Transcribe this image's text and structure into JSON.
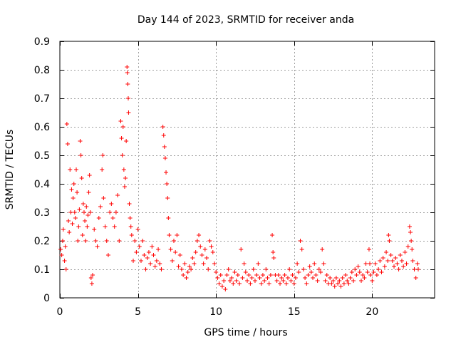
{
  "chart_data": {
    "type": "scatter",
    "title": "Day 144 of 2023, SRMTID for receiver anda",
    "xlabel": "GPS time / hours",
    "ylabel": "SRMTID / TECUs",
    "xlim": [
      0,
      24
    ],
    "ylim": [
      0,
      0.9
    ],
    "xticks": [
      0,
      5,
      10,
      15,
      20
    ],
    "yticks": [
      0,
      0.1,
      0.2,
      0.3,
      0.4,
      0.5,
      0.6,
      0.7,
      0.8,
      0.9
    ],
    "grid": true,
    "marker": "+",
    "color": "#ff0000",
    "series": [
      {
        "name": "SRMTID",
        "points": [
          [
            0.05,
            0.17
          ],
          [
            0.12,
            0.15
          ],
          [
            0.18,
            0.2
          ],
          [
            0.22,
            0.24
          ],
          [
            0.3,
            0.13
          ],
          [
            0.35,
            0.18
          ],
          [
            0.4,
            0.1
          ],
          [
            0.45,
            0.61
          ],
          [
            0.5,
            0.54
          ],
          [
            0.55,
            0.27
          ],
          [
            0.6,
            0.23
          ],
          [
            0.65,
            0.45
          ],
          [
            0.7,
            0.3
          ],
          [
            0.75,
            0.38
          ],
          [
            0.8,
            0.26
          ],
          [
            0.85,
            0.35
          ],
          [
            0.9,
            0.4
          ],
          [
            0.95,
            0.3
          ],
          [
            1.0,
            0.28
          ],
          [
            1.05,
            0.45
          ],
          [
            1.1,
            0.37
          ],
          [
            1.15,
            0.2
          ],
          [
            1.2,
            0.25
          ],
          [
            1.25,
            0.31
          ],
          [
            1.3,
            0.55
          ],
          [
            1.35,
            0.5
          ],
          [
            1.4,
            0.42
          ],
          [
            1.45,
            0.22
          ],
          [
            1.5,
            0.33
          ],
          [
            1.55,
            0.3
          ],
          [
            1.6,
            0.27
          ],
          [
            1.65,
            0.2
          ],
          [
            1.7,
            0.32
          ],
          [
            1.75,
            0.25
          ],
          [
            1.8,
            0.29
          ],
          [
            1.85,
            0.37
          ],
          [
            1.9,
            0.43
          ],
          [
            1.95,
            0.3
          ],
          [
            2.0,
            0.07
          ],
          [
            2.05,
            0.05
          ],
          [
            2.1,
            0.08
          ],
          [
            2.2,
            0.24
          ],
          [
            2.3,
            0.2
          ],
          [
            2.4,
            0.18
          ],
          [
            2.5,
            0.28
          ],
          [
            2.6,
            0.32
          ],
          [
            2.7,
            0.45
          ],
          [
            2.75,
            0.5
          ],
          [
            2.8,
            0.35
          ],
          [
            2.9,
            0.25
          ],
          [
            3.0,
            0.2
          ],
          [
            3.1,
            0.15
          ],
          [
            3.2,
            0.3
          ],
          [
            3.3,
            0.33
          ],
          [
            3.4,
            0.28
          ],
          [
            3.5,
            0.25
          ],
          [
            3.6,
            0.3
          ],
          [
            3.7,
            0.36
          ],
          [
            3.8,
            0.2
          ],
          [
            3.9,
            0.62
          ],
          [
            3.95,
            0.56
          ],
          [
            4.0,
            0.5
          ],
          [
            4.05,
            0.6
          ],
          [
            4.1,
            0.45
          ],
          [
            4.15,
            0.39
          ],
          [
            4.2,
            0.42
          ],
          [
            4.25,
            0.55
          ],
          [
            4.3,
            0.81
          ],
          [
            4.32,
            0.79
          ],
          [
            4.35,
            0.75
          ],
          [
            4.38,
            0.7
          ],
          [
            4.4,
            0.65
          ],
          [
            4.45,
            0.33
          ],
          [
            4.5,
            0.28
          ],
          [
            4.55,
            0.25
          ],
          [
            4.6,
            0.22
          ],
          [
            4.7,
            0.13
          ],
          [
            4.8,
            0.2
          ],
          [
            4.9,
            0.16
          ],
          [
            5.0,
            0.24
          ],
          [
            5.1,
            0.18
          ],
          [
            5.2,
            0.13
          ],
          [
            5.3,
            0.2
          ],
          [
            5.4,
            0.15
          ],
          [
            5.5,
            0.1
          ],
          [
            5.6,
            0.14
          ],
          [
            5.7,
            0.16
          ],
          [
            5.8,
            0.12
          ],
          [
            5.9,
            0.18
          ],
          [
            6.0,
            0.15
          ],
          [
            6.1,
            0.11
          ],
          [
            6.2,
            0.13
          ],
          [
            6.3,
            0.17
          ],
          [
            6.4,
            0.12
          ],
          [
            6.5,
            0.1
          ],
          [
            6.6,
            0.6
          ],
          [
            6.65,
            0.57
          ],
          [
            6.7,
            0.53
          ],
          [
            6.75,
            0.49
          ],
          [
            6.8,
            0.44
          ],
          [
            6.85,
            0.4
          ],
          [
            6.9,
            0.35
          ],
          [
            6.95,
            0.28
          ],
          [
            7.0,
            0.22
          ],
          [
            7.1,
            0.17
          ],
          [
            7.2,
            0.13
          ],
          [
            7.3,
            0.2
          ],
          [
            7.4,
            0.16
          ],
          [
            7.5,
            0.22
          ],
          [
            7.6,
            0.11
          ],
          [
            7.7,
            0.15
          ],
          [
            7.8,
            0.1
          ],
          [
            7.9,
            0.08
          ],
          [
            8.0,
            0.12
          ],
          [
            8.1,
            0.07
          ],
          [
            8.2,
            0.09
          ],
          [
            8.3,
            0.11
          ],
          [
            8.4,
            0.1
          ],
          [
            8.5,
            0.14
          ],
          [
            8.6,
            0.12
          ],
          [
            8.7,
            0.16
          ],
          [
            8.8,
            0.2
          ],
          [
            8.9,
            0.22
          ],
          [
            9.0,
            0.18
          ],
          [
            9.1,
            0.15
          ],
          [
            9.2,
            0.12
          ],
          [
            9.3,
            0.17
          ],
          [
            9.4,
            0.14
          ],
          [
            9.5,
            0.1
          ],
          [
            9.6,
            0.2
          ],
          [
            9.7,
            0.18
          ],
          [
            9.8,
            0.16
          ],
          [
            9.9,
            0.12
          ],
          [
            10.0,
            0.09
          ],
          [
            10.1,
            0.07
          ],
          [
            10.2,
            0.05
          ],
          [
            10.3,
            0.08
          ],
          [
            10.4,
            0.04
          ],
          [
            10.5,
            0.06
          ],
          [
            10.6,
            0.03
          ],
          [
            10.7,
            0.08
          ],
          [
            10.8,
            0.1
          ],
          [
            10.9,
            0.06
          ],
          [
            11.0,
            0.07
          ],
          [
            11.1,
            0.05
          ],
          [
            11.2,
            0.09
          ],
          [
            11.3,
            0.06
          ],
          [
            11.4,
            0.08
          ],
          [
            11.5,
            0.05
          ],
          [
            11.6,
            0.17
          ],
          [
            11.7,
            0.07
          ],
          [
            11.8,
            0.12
          ],
          [
            11.9,
            0.09
          ],
          [
            12.0,
            0.06
          ],
          [
            12.1,
            0.08
          ],
          [
            12.2,
            0.05
          ],
          [
            12.3,
            0.07
          ],
          [
            12.4,
            0.1
          ],
          [
            12.5,
            0.06
          ],
          [
            12.6,
            0.08
          ],
          [
            12.7,
            0.12
          ],
          [
            12.8,
            0.07
          ],
          [
            12.9,
            0.05
          ],
          [
            13.0,
            0.08
          ],
          [
            13.1,
            0.06
          ],
          [
            13.2,
            0.1
          ],
          [
            13.3,
            0.07
          ],
          [
            13.4,
            0.05
          ],
          [
            13.5,
            0.08
          ],
          [
            13.6,
            0.22
          ],
          [
            13.65,
            0.16
          ],
          [
            13.7,
            0.14
          ],
          [
            13.8,
            0.08
          ],
          [
            13.9,
            0.06
          ],
          [
            14.0,
            0.08
          ],
          [
            14.1,
            0.05
          ],
          [
            14.2,
            0.07
          ],
          [
            14.3,
            0.06
          ],
          [
            14.4,
            0.08
          ],
          [
            14.5,
            0.05
          ],
          [
            14.6,
            0.07
          ],
          [
            14.7,
            0.1
          ],
          [
            14.8,
            0.06
          ],
          [
            14.9,
            0.08
          ],
          [
            15.0,
            0.05
          ],
          [
            15.1,
            0.07
          ],
          [
            15.2,
            0.12
          ],
          [
            15.3,
            0.09
          ],
          [
            15.4,
            0.2
          ],
          [
            15.5,
            0.17
          ],
          [
            15.6,
            0.1
          ],
          [
            15.7,
            0.07
          ],
          [
            15.8,
            0.05
          ],
          [
            15.9,
            0.08
          ],
          [
            16.0,
            0.11
          ],
          [
            16.1,
            0.09
          ],
          [
            16.2,
            0.07
          ],
          [
            16.3,
            0.12
          ],
          [
            16.4,
            0.08
          ],
          [
            16.5,
            0.06
          ],
          [
            16.6,
            0.1
          ],
          [
            16.7,
            0.09
          ],
          [
            16.8,
            0.17
          ],
          [
            16.9,
            0.12
          ],
          [
            17.0,
            0.06
          ],
          [
            17.1,
            0.08
          ],
          [
            17.2,
            0.05
          ],
          [
            17.3,
            0.07
          ],
          [
            17.4,
            0.05
          ],
          [
            17.5,
            0.06
          ],
          [
            17.6,
            0.04
          ],
          [
            17.7,
            0.07
          ],
          [
            17.8,
            0.05
          ],
          [
            17.9,
            0.06
          ],
          [
            18.0,
            0.04
          ],
          [
            18.1,
            0.07
          ],
          [
            18.2,
            0.05
          ],
          [
            18.3,
            0.08
          ],
          [
            18.4,
            0.06
          ],
          [
            18.5,
            0.05
          ],
          [
            18.6,
            0.07
          ],
          [
            18.7,
            0.09
          ],
          [
            18.8,
            0.06
          ],
          [
            18.9,
            0.1
          ],
          [
            19.0,
            0.08
          ],
          [
            19.1,
            0.11
          ],
          [
            19.2,
            0.09
          ],
          [
            19.3,
            0.06
          ],
          [
            19.4,
            0.08
          ],
          [
            19.5,
            0.07
          ],
          [
            19.6,
            0.12
          ],
          [
            19.7,
            0.09
          ],
          [
            19.8,
            0.17
          ],
          [
            19.85,
            0.12
          ],
          [
            19.9,
            0.08
          ],
          [
            20.0,
            0.06
          ],
          [
            20.1,
            0.09
          ],
          [
            20.2,
            0.12
          ],
          [
            20.3,
            0.08
          ],
          [
            20.4,
            0.1
          ],
          [
            20.5,
            0.13
          ],
          [
            20.6,
            0.09
          ],
          [
            20.7,
            0.14
          ],
          [
            20.8,
            0.11
          ],
          [
            20.9,
            0.16
          ],
          [
            21.0,
            0.13
          ],
          [
            21.05,
            0.22
          ],
          [
            21.1,
            0.2
          ],
          [
            21.2,
            0.15
          ],
          [
            21.3,
            0.13
          ],
          [
            21.4,
            0.11
          ],
          [
            21.5,
            0.14
          ],
          [
            21.6,
            0.12
          ],
          [
            21.7,
            0.1
          ],
          [
            21.8,
            0.15
          ],
          [
            21.9,
            0.13
          ],
          [
            22.0,
            0.11
          ],
          [
            22.1,
            0.16
          ],
          [
            22.2,
            0.12
          ],
          [
            22.3,
            0.18
          ],
          [
            22.4,
            0.25
          ],
          [
            22.45,
            0.23
          ],
          [
            22.5,
            0.2
          ],
          [
            22.55,
            0.17
          ],
          [
            22.6,
            0.13
          ],
          [
            22.7,
            0.1
          ],
          [
            22.8,
            0.07
          ],
          [
            22.9,
            0.12
          ],
          [
            22.95,
            0.1
          ]
        ]
      }
    ]
  }
}
